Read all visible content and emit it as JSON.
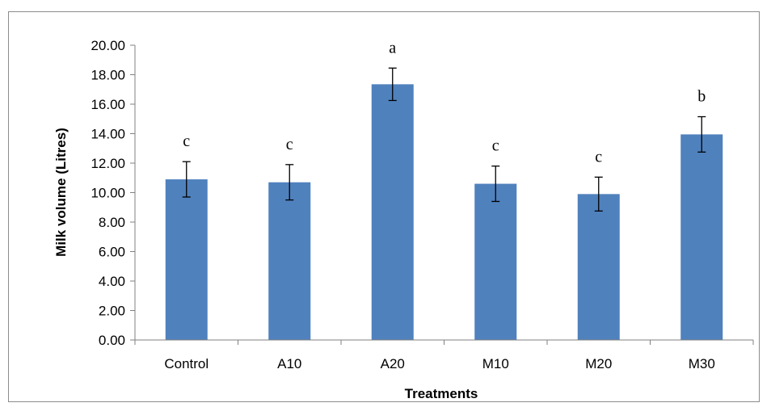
{
  "chart_data": {
    "type": "bar",
    "categories": [
      "Control",
      "A10",
      "A20",
      "M10",
      "M20",
      "M30"
    ],
    "values": [
      10.9,
      10.7,
      17.35,
      10.6,
      9.9,
      13.95
    ],
    "errors": [
      1.2,
      1.2,
      1.1,
      1.2,
      1.15,
      1.2
    ],
    "significance_letters": [
      "c",
      "c",
      "a",
      "c",
      "c",
      "b"
    ],
    "xlabel": "Treatments",
    "ylabel": "Milk volume (Litres)",
    "ylim": [
      0,
      20
    ],
    "yticks": [
      "0.00",
      "2.00",
      "4.00",
      "6.00",
      "8.00",
      "10.00",
      "12.00",
      "14.00",
      "16.00",
      "18.00",
      "20.00"
    ],
    "grid": false,
    "bar_color": "#4f81bd"
  }
}
